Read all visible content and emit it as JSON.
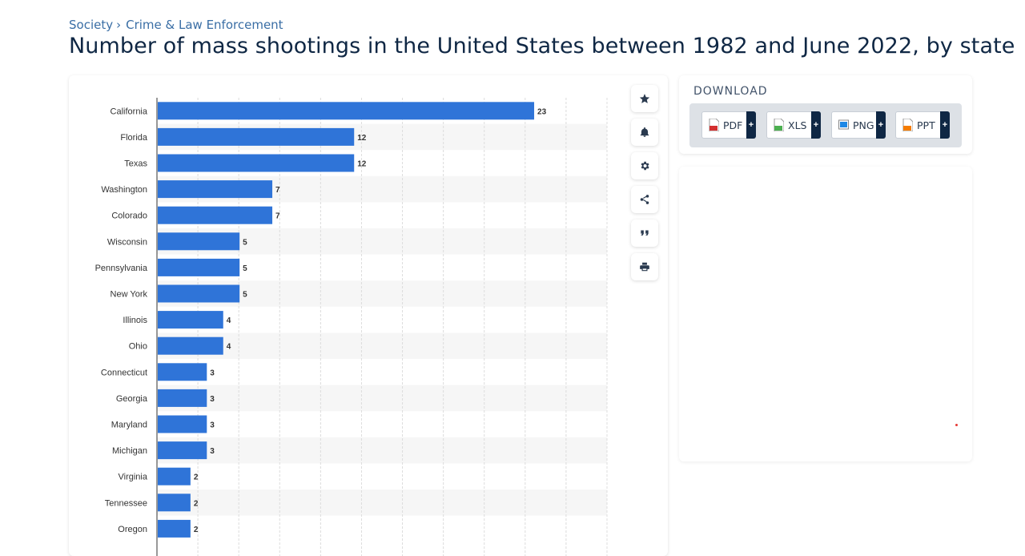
{
  "breadcrumb": {
    "parent": "Society",
    "separator": "›",
    "current": "Crime & Law Enforcement"
  },
  "page_title": "Number of mass shootings in the United States between 1982 and June 2022, by state",
  "tools": [
    {
      "name": "favorite-icon"
    },
    {
      "name": "notification-bell-icon"
    },
    {
      "name": "settings-gear-icon"
    },
    {
      "name": "share-icon"
    },
    {
      "name": "quote-citation-icon"
    },
    {
      "name": "print-icon"
    }
  ],
  "download": {
    "title": "DOWNLOAD",
    "buttons": [
      {
        "label": "PDF",
        "icon": "pdf-file-icon",
        "color": "#d32f2f"
      },
      {
        "label": "XLS",
        "icon": "xls-file-icon",
        "color": "#4caf50"
      },
      {
        "label": "PNG",
        "icon": "png-file-icon",
        "color": "#1e88e5"
      },
      {
        "label": "PPT",
        "icon": "ppt-file-icon",
        "color": "#f57c00"
      }
    ]
  },
  "colors": {
    "bar": "#2f74d8",
    "accent_navy": "#0f2744",
    "link": "#3a6ea5"
  },
  "chart_data": {
    "type": "bar",
    "orientation": "horizontal",
    "categories": [
      "California",
      "Florida",
      "Texas",
      "Washington",
      "Colorado",
      "Wisconsin",
      "Pennsylvania",
      "New York",
      "Illinois",
      "Ohio",
      "Connecticut",
      "Georgia",
      "Maryland",
      "Michigan",
      "Virginia",
      "Tennessee",
      "Oregon"
    ],
    "values": [
      23,
      12,
      12,
      7,
      7,
      5,
      5,
      5,
      4,
      4,
      3,
      3,
      3,
      3,
      2,
      2,
      2
    ],
    "xlim": [
      0,
      27.5
    ],
    "grid": true,
    "data_labels": true
  }
}
